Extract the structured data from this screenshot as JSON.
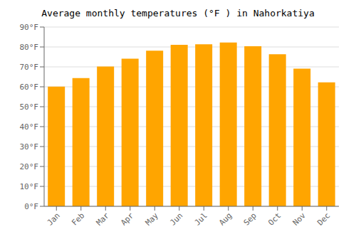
{
  "chart_data": {
    "type": "bar",
    "title": "Average monthly temperatures (°F ) in Nahorkatiya",
    "categories": [
      "Jan",
      "Feb",
      "Mar",
      "Apr",
      "May",
      "Jun",
      "Jul",
      "Aug",
      "Sep",
      "Oct",
      "Nov",
      "Dec"
    ],
    "values": [
      60.1,
      64.4,
      70.2,
      74.1,
      78.1,
      81.1,
      81.3,
      82.2,
      80.4,
      76.3,
      69.1,
      62.2
    ],
    "color": "#FFA500",
    "ylim": [
      0,
      90
    ],
    "yticks": [
      {
        "value": 0,
        "label": "0°F"
      },
      {
        "value": 10,
        "label": "10°F"
      },
      {
        "value": 20,
        "label": "20°F"
      },
      {
        "value": 30,
        "label": "30°F"
      },
      {
        "value": 40,
        "label": "40°F"
      },
      {
        "value": 50,
        "label": "50°F"
      },
      {
        "value": 60,
        "label": "60°F"
      },
      {
        "value": 70,
        "label": "70°F"
      },
      {
        "value": 80,
        "label": "80°F"
      },
      {
        "value": 90,
        "label": "90°F"
      }
    ],
    "grid": true
  }
}
